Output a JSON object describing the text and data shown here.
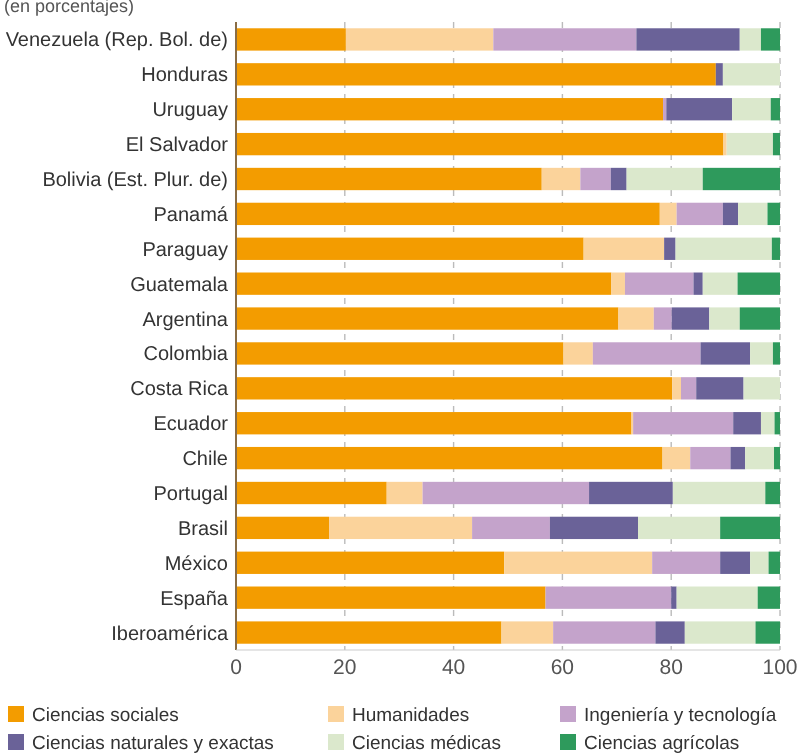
{
  "chart_data": {
    "type": "bar",
    "orientation": "horizontal",
    "stacked": true,
    "subtitle": "(en porcentajes)",
    "categories": [
      "Venezuela (Rep. Bol. de)",
      "Honduras",
      "Uruguay",
      "El Salvador",
      "Bolivia (Est. Plur. de)",
      "Panamá",
      "Paraguay",
      "Guatemala",
      "Argentina",
      "Colombia",
      "Costa Rica",
      "Ecuador",
      "Chile",
      "Portugal",
      "Brasil",
      "México",
      "España",
      "Iberoamérica"
    ],
    "series": [
      {
        "name": "Ciencias sociales",
        "color": "#f39c00",
        "values": [
          20.2,
          88.2,
          78.5,
          89.6,
          56.2,
          77.9,
          63.9,
          69.0,
          70.3,
          60.2,
          80.2,
          72.7,
          78.4,
          27.7,
          17.1,
          49.3,
          56.9,
          48.8
        ]
      },
      {
        "name": "Humanidades",
        "color": "#fbd39b",
        "values": [
          27.1,
          0,
          0,
          0.6,
          7.1,
          3.1,
          14.8,
          2.5,
          6.5,
          5.4,
          1.6,
          0.3,
          5.1,
          6.6,
          26.3,
          27.2,
          0,
          9.5
        ]
      },
      {
        "name": "Ingeniería y tecnología",
        "color": "#c4a3cb",
        "values": [
          26.3,
          0,
          0.6,
          0,
          5.6,
          8.5,
          0,
          12.6,
          3.3,
          19.8,
          2.8,
          18.4,
          7.4,
          30.6,
          14.3,
          12.5,
          23.1,
          18.8
        ]
      },
      {
        "name": "Ciencias naturales y exactas",
        "color": "#6a6298",
        "values": [
          19.0,
          1.3,
          12.1,
          0,
          2.9,
          2.8,
          2.1,
          1.7,
          6.9,
          9.1,
          8.7,
          5.1,
          2.7,
          15.4,
          16.2,
          5.5,
          1.0,
          5.4
        ]
      },
      {
        "name": "Ciencias médicas",
        "color": "#dbe8cc",
        "values": [
          3.9,
          10.5,
          7.1,
          8.5,
          14.0,
          5.4,
          17.7,
          6.4,
          5.6,
          4.2,
          6.7,
          2.5,
          5.3,
          17.0,
          15.1,
          3.4,
          14.9,
          13.0
        ]
      },
      {
        "name": "Ciencias agrícolas",
        "color": "#2e9a5c",
        "values": [
          3.5,
          0,
          1.7,
          1.3,
          14.2,
          2.3,
          1.5,
          7.8,
          7.4,
          1.3,
          0,
          1.0,
          1.1,
          2.7,
          11.0,
          2.1,
          4.1,
          4.5
        ]
      }
    ],
    "xlim": [
      0,
      100
    ],
    "xticks": [
      0,
      20,
      40,
      60,
      80,
      100
    ],
    "grid": "x",
    "legend": "bottom"
  }
}
